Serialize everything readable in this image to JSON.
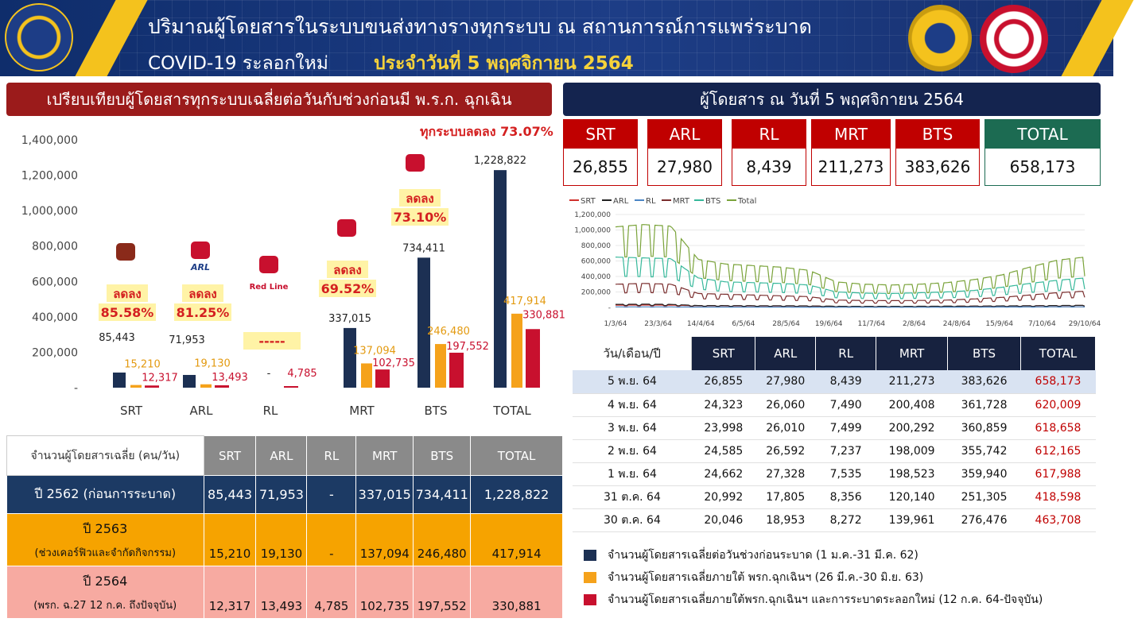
{
  "header": {
    "title_line1": "ปริมาณผู้โดยสารในระบบขนส่งทางรางทุกระบบ ณ สถานการณ์การแพร่ระบาด",
    "title_line2a": "COVID-19 ระลอกใหม่",
    "title_line2b": "ประจำวันที่ 5 พฤศจิกายน 2564"
  },
  "left": {
    "title": "เปรียบเทียบผู้โดยสารทุกระบบเฉลี่ยต่อวันกับช่วงก่อนมี พ.ร.ก. ฉุกเฉิน",
    "reduce_all": "ทุกระบบลดลง 73.07%",
    "logo_labels": {
      "arl": "ARL",
      "rl": "Red Line"
    }
  },
  "chart_data": [
    {
      "type": "bar",
      "categories": [
        "SRT",
        "ARL",
        "RL",
        "MRT",
        "BTS",
        "TOTAL"
      ],
      "series": [
        {
          "values": [
            85443,
            71953,
            null,
            337015,
            734411,
            1228822
          ]
        },
        {
          "values": [
            15210,
            19130,
            null,
            137094,
            246480,
            417914
          ]
        },
        {
          "values": [
            12317,
            13493,
            4785,
            102735,
            197552,
            330881
          ]
        }
      ],
      "value_labels": [
        [
          "85,443",
          "71,953",
          "-",
          "337,015",
          "734,411",
          "1,228,822"
        ],
        [
          "15,210",
          "19,130",
          "",
          "137,094",
          "246,480",
          "417,914"
        ],
        [
          "12,317",
          "13,493",
          "4,785",
          "102,735",
          "197,552",
          "330,881"
        ]
      ],
      "reductions": [
        {
          "category": "SRT",
          "line1": "ลดลง",
          "line2": "85.58%"
        },
        {
          "category": "ARL",
          "line1": "ลดลง",
          "line2": "81.25%"
        },
        {
          "category": "RL",
          "line1": "",
          "line2": "-----"
        },
        {
          "category": "MRT",
          "line1": "ลดลง",
          "line2": "69.52%"
        },
        {
          "category": "BTS",
          "line1": "ลดลง",
          "line2": "73.10%"
        }
      ],
      "ylim": [
        0,
        1400000
      ],
      "yticks": [
        "-",
        "200,000",
        "400,000",
        "600,000",
        "800,000",
        "1,000,000",
        "1,200,000",
        "1,400,000"
      ],
      "colors": [
        "#1c3053",
        "#f5a21b",
        "#c8102e"
      ]
    },
    {
      "type": "line",
      "legend": [
        "SRT",
        "ARL",
        "RL",
        "MRT",
        "BTS",
        "Total"
      ],
      "colors": [
        "#d0312d",
        "#222222",
        "#4a86c5",
        "#7a2d2d",
        "#36b89a",
        "#7aa33a"
      ],
      "x_ticks": [
        "1/3/64",
        "23/3/64",
        "14/4/64",
        "6/5/64",
        "28/5/64",
        "19/6/64",
        "11/7/64",
        "2/8/64",
        "24/8/64",
        "15/9/64",
        "7/10/64",
        "29/10/64"
      ],
      "y_ticks": [
        "-",
        "200,000",
        "400,000",
        "600,000",
        "800,000",
        "1,000,000",
        "1,200,000"
      ],
      "ylim": [
        0,
        1200000
      ],
      "approx_weekly": {
        "Total": [
          1040000,
          1070000,
          1050000,
          620000,
          560000,
          540000,
          520000,
          480000,
          330000,
          300000,
          290000,
          300000,
          320000,
          360000,
          420000,
          520000,
          610000,
          650000
        ],
        "BTS": [
          650000,
          640000,
          630000,
          380000,
          330000,
          320000,
          310000,
          290000,
          200000,
          185000,
          180000,
          190000,
          200000,
          220000,
          260000,
          310000,
          350000,
          380000
        ],
        "MRT": [
          300000,
          310000,
          300000,
          180000,
          170000,
          160000,
          150000,
          140000,
          95000,
          90000,
          88000,
          90000,
          95000,
          110000,
          130000,
          160000,
          190000,
          210000
        ],
        "ARL": [
          40000,
          42000,
          40000,
          25000,
          24000,
          23000,
          22000,
          20000,
          15000,
          14000,
          14000,
          15000,
          16000,
          18000,
          20000,
          22000,
          25000,
          27000
        ],
        "SRT": [
          30000,
          31000,
          30000,
          22000,
          21000,
          20000,
          19000,
          18000,
          14000,
          13000,
          13000,
          14000,
          15000,
          17000,
          19000,
          21000,
          24000,
          26000
        ],
        "RL": [
          8000,
          8000,
          8000,
          5000,
          5000,
          5000,
          5000,
          4000,
          3000,
          3000,
          3000,
          3000,
          4000,
          5000,
          6000,
          7000,
          8000,
          8400
        ]
      }
    }
  ],
  "left_table": {
    "header": [
      "จำนวนผู้โดยสารเฉลี่ย (คน/วัน)",
      "SRT",
      "ARL",
      "RL",
      "MRT",
      "BTS",
      "TOTAL"
    ],
    "rows": [
      {
        "label_main": "ปี 2562 (ก่อนการระบาด)",
        "label_sub": "",
        "values": [
          "85,443",
          "71,953",
          "-",
          "337,015",
          "734,411",
          "1,228,822"
        ]
      },
      {
        "label_main": "ปี 2563",
        "label_sub": "(ช่วงเคอร์ฟิวและจำกัดกิจกรรม)",
        "values": [
          "15,210",
          "19,130",
          "-",
          "137,094",
          "246,480",
          "417,914"
        ]
      },
      {
        "label_main": "ปี 2564",
        "label_sub": "(พรก. ฉ.27 12 ก.ค. ถึงปัจจุบัน)",
        "values": [
          "12,317",
          "13,493",
          "4,785",
          "102,735",
          "197,552",
          "330,881"
        ]
      }
    ]
  },
  "right": {
    "title": "ผู้โดยสาร ณ วันที่ 5 พฤศจิกายน 2564",
    "cards": [
      {
        "label": "SRT",
        "value": "26,855"
      },
      {
        "label": "ARL",
        "value": "27,980"
      },
      {
        "label": "RL",
        "value": "8,439"
      },
      {
        "label": "MRT",
        "value": "211,273"
      },
      {
        "label": "BTS",
        "value": "383,626"
      },
      {
        "label": "TOTAL",
        "value": "658,173"
      }
    ]
  },
  "right_table": {
    "header": [
      "วัน/เดือน/ปี",
      "SRT",
      "ARL",
      "RL",
      "MRT",
      "BTS",
      "TOTAL"
    ],
    "rows": [
      [
        "5 พ.ย. 64",
        "26,855",
        "27,980",
        "8,439",
        "211,273",
        "383,626",
        "658,173"
      ],
      [
        "4 พ.ย. 64",
        "24,323",
        "26,060",
        "7,490",
        "200,408",
        "361,728",
        "620,009"
      ],
      [
        "3 พ.ย. 64",
        "23,998",
        "26,010",
        "7,499",
        "200,292",
        "360,859",
        "618,658"
      ],
      [
        "2 พ.ย. 64",
        "24,585",
        "26,592",
        "7,237",
        "198,009",
        "355,742",
        "612,165"
      ],
      [
        "1 พ.ย. 64",
        "24,662",
        "27,328",
        "7,535",
        "198,523",
        "359,940",
        "617,988"
      ],
      [
        "31 ต.ค. 64",
        "20,992",
        "17,805",
        "8,356",
        "120,140",
        "251,305",
        "418,598"
      ],
      [
        "30 ต.ค. 64",
        "20,046",
        "18,953",
        "8,272",
        "139,961",
        "276,476",
        "463,708"
      ]
    ]
  },
  "legend": [
    {
      "color": "#1c3053",
      "text": "จำนวนผู้โดยสารเฉลี่ยต่อวันช่วงก่อนระบาด (1 ม.ค.-31 มี.ค. 62)"
    },
    {
      "color": "#f5a21b",
      "text": "จำนวนผู้โดยสารเฉลี่ยภายใต้ พรก.ฉุกเฉินฯ (26 มี.ค.-30 มิ.ย. 63)"
    },
    {
      "color": "#c8102e",
      "text": "จำนวนผู้โดยสารเฉลี่ยภายใต้พรก.ฉุกเฉินฯ และการระบาดระลอกใหม่ (12 ก.ค. 64-ปัจจุบัน)"
    }
  ]
}
